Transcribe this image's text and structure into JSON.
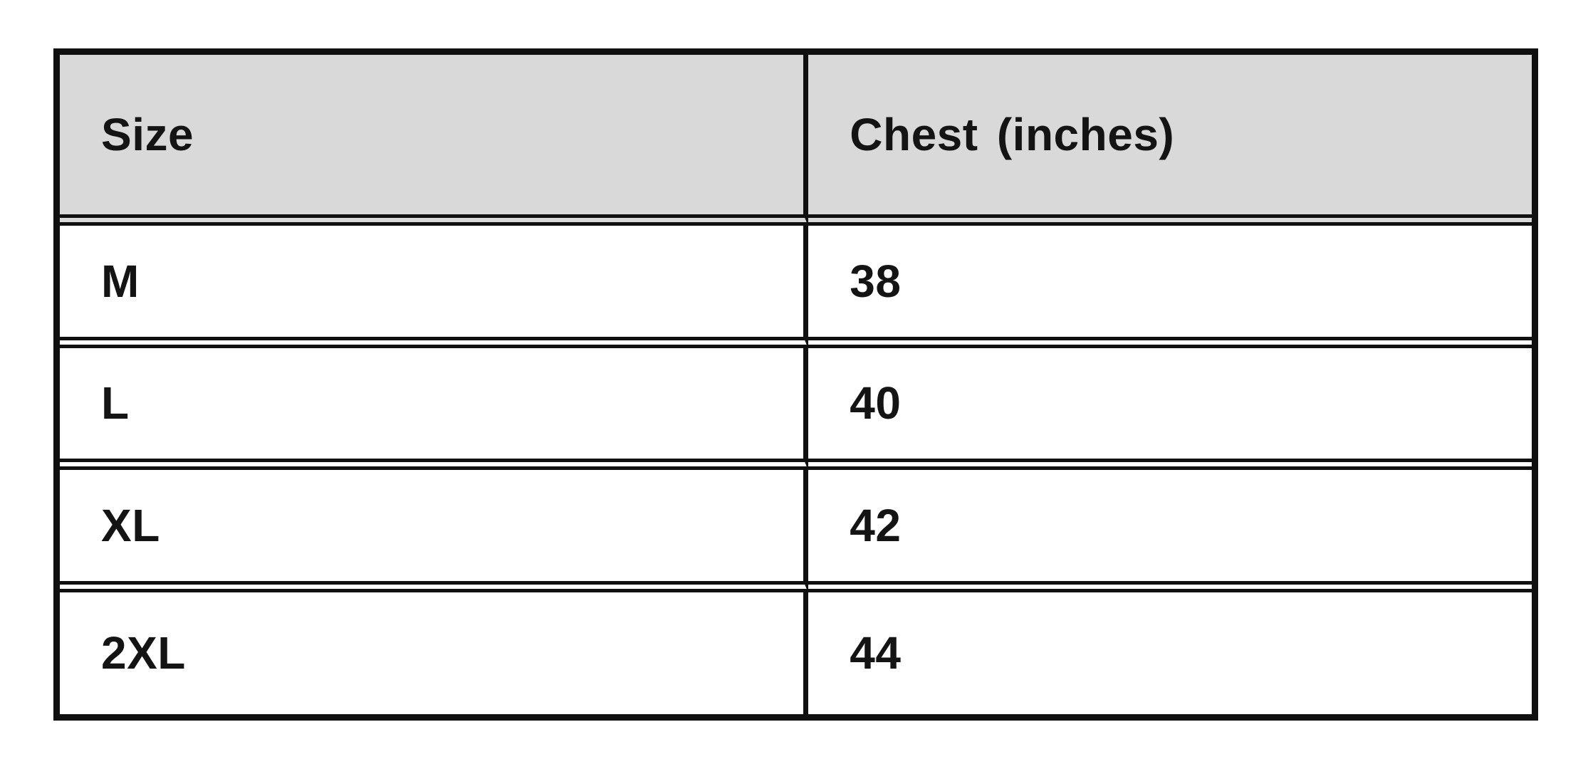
{
  "page": {
    "description": "Apparel size chart table",
    "background": "#ffffff"
  },
  "table": {
    "columns": [
      "Size",
      "Chest (inches)"
    ],
    "rows": [
      [
        "M",
        "38"
      ],
      [
        "L",
        "40"
      ],
      [
        "XL",
        "42"
      ],
      [
        "2XL",
        "44"
      ]
    ],
    "colors": {
      "border": "#101010",
      "header_bg": "#d9d9d9",
      "text": "#141414",
      "background": "#ffffff"
    }
  },
  "chart_data": {
    "type": "table",
    "title": "",
    "columns": [
      "Size",
      "Chest (inches)"
    ],
    "rows": [
      [
        "M",
        38
      ],
      [
        "L",
        40
      ],
      [
        "XL",
        42
      ],
      [
        "2XL",
        44
      ]
    ],
    "layout": {
      "header_fill": "#d9d9d9",
      "body_fill": "#ffffff",
      "grid": "on",
      "border_color": "#101010"
    }
  }
}
